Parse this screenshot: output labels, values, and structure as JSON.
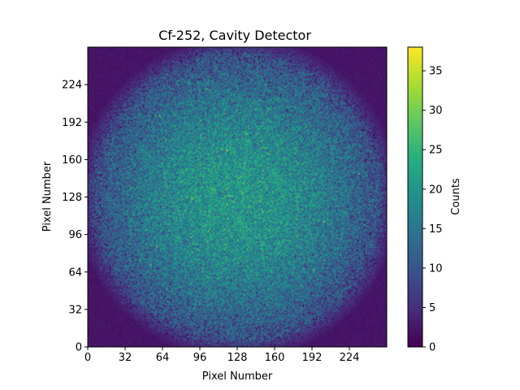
{
  "chart_data": {
    "type": "heatmap",
    "title": "Cf-252, Cavity Detector",
    "xlabel": "Pixel Number",
    "ylabel": "Pixel Number",
    "colorbar_label": "Counts",
    "colormap": "viridis",
    "xlim": [
      0,
      256
    ],
    "ylim": [
      0,
      256
    ],
    "x_ticks": [
      0,
      32,
      64,
      96,
      128,
      160,
      192,
      224
    ],
    "y_ticks": [
      0,
      32,
      64,
      96,
      128,
      160,
      192,
      224
    ],
    "color_range": [
      0,
      38
    ],
    "colorbar_ticks": [
      0,
      5,
      10,
      15,
      20,
      25,
      30,
      35
    ],
    "grid_size": 256,
    "peak_counts_center": 20,
    "edge_counts": 8,
    "detector_radius_pixels": 128,
    "noise_std": 4,
    "grid": false
  }
}
